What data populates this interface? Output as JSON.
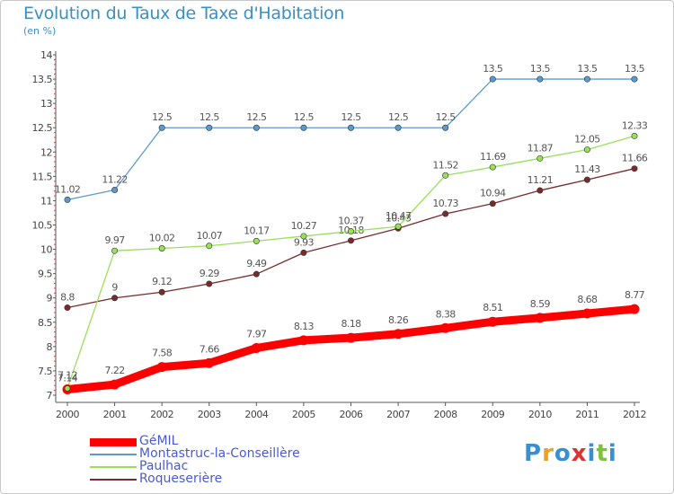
{
  "chart_data": {
    "type": "line",
    "title": "Evolution du Taux de Taxe d'Habitation",
    "subtitle": "(en %)",
    "x": [
      "2000",
      "2001",
      "2002",
      "2003",
      "2004",
      "2005",
      "2006",
      "2007",
      "2008",
      "2009",
      "2010",
      "2011",
      "2012"
    ],
    "ylim": [
      7,
      14
    ],
    "yticks": [
      "7",
      "7.5",
      "8",
      "8.5",
      "9",
      "9.5",
      "10",
      "10.5",
      "11",
      "11.5",
      "12",
      "12.5",
      "13",
      "13.5",
      "14"
    ],
    "grid": false,
    "legend_position": "bottom-left",
    "series": [
      {
        "name": "GéMIL",
        "color": "#ff0000",
        "values": [
          7.12,
          7.22,
          7.58,
          7.66,
          7.97,
          8.13,
          8.18,
          8.26,
          8.38,
          8.51,
          8.59,
          8.68,
          8.77
        ],
        "labels": [
          "7.12",
          "7.22",
          "7.58",
          "7.66",
          "7.97",
          "8.13",
          "8.18",
          "8.26",
          "8.38",
          "8.51",
          "8.59",
          "8.68",
          "8.77"
        ]
      },
      {
        "name": "Montastruc-la-Conseillère",
        "color": "#5a9bcf",
        "values": [
          11.02,
          11.22,
          12.5,
          12.5,
          12.5,
          12.5,
          12.5,
          12.5,
          12.5,
          13.5,
          13.5,
          13.5,
          13.5
        ],
        "labels": [
          "11.02",
          "11.22",
          "12.5",
          "12.5",
          "12.5",
          "12.5",
          "12.5",
          "12.5",
          "12.5",
          "13.5",
          "13.5",
          "13.5",
          "13.5"
        ]
      },
      {
        "name": "Paulhac",
        "color": "#99e05a",
        "values": [
          7.14,
          9.97,
          10.02,
          10.07,
          10.17,
          10.27,
          10.37,
          10.47,
          11.52,
          11.69,
          11.87,
          12.05,
          12.33
        ],
        "labels": [
          "7.14",
          "9.97",
          "10.02",
          "10.07",
          "10.17",
          "10.27",
          "10.37",
          "10.47",
          "11.52",
          "11.69",
          "11.87",
          "12.05",
          "12.33"
        ]
      },
      {
        "name": "Roqueserière",
        "color": "#7a2a2a",
        "values": [
          8.8,
          9.0,
          9.12,
          9.29,
          9.49,
          9.93,
          10.18,
          10.43,
          10.73,
          10.94,
          11.21,
          11.43,
          11.66
        ],
        "labels": [
          "8.8",
          "9",
          "9.12",
          "9.29",
          "9.49",
          "9.93",
          "10.18",
          "10.43",
          "10.73",
          "10.94",
          "11.21",
          "11.43",
          "11.66"
        ]
      }
    ]
  },
  "legend": {
    "items": [
      {
        "label": "GéMIL",
        "color": "#ff0000"
      },
      {
        "label": "Montastruc-la-Conseillère",
        "color": "#5a9bcf"
      },
      {
        "label": "Paulhac",
        "color": "#99e05a"
      },
      {
        "label": "Roqueserière",
        "color": "#7a2a2a"
      }
    ]
  },
  "logo": {
    "letters": [
      "P",
      "r",
      "o",
      "x",
      "i",
      "t",
      "i"
    ],
    "colors": [
      "#3a8fd0",
      "#f0a020",
      "#3a8fd0",
      "#e03030",
      "#3a8fd0",
      "#80c040",
      "#3a8fd0"
    ]
  }
}
